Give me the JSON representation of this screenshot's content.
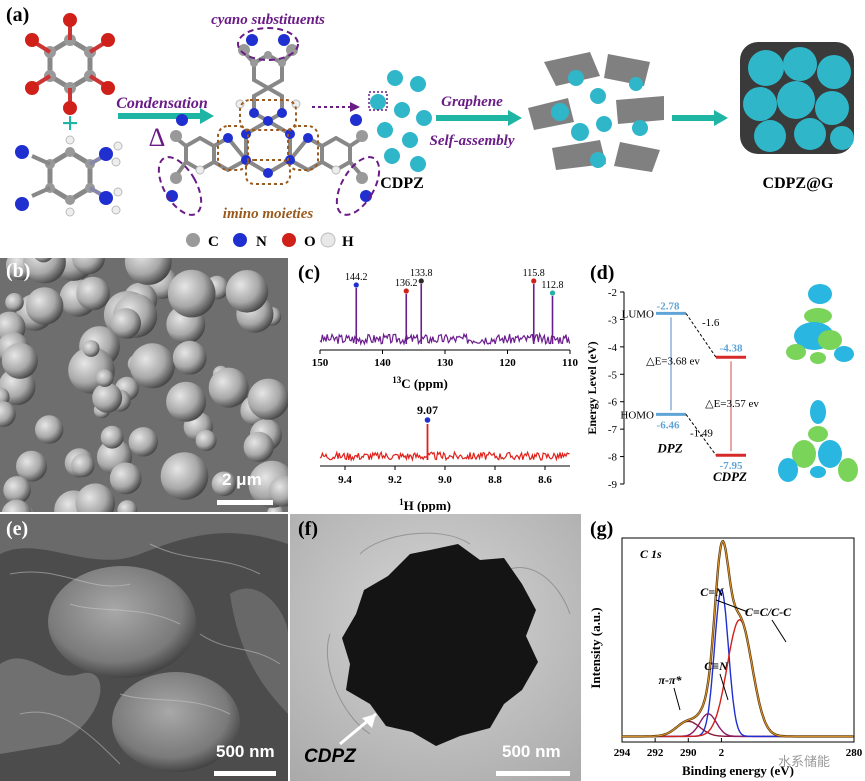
{
  "panel_labels": {
    "a": "(a)",
    "b": "(b)",
    "c": "(c)",
    "d": "(d)",
    "e": "(e)",
    "f": "(f)",
    "g": "(g)"
  },
  "panel_a": {
    "cyano_label": "cyano substituents",
    "condensation": "Condensation",
    "delta": "Δ",
    "imino_label": "imino moieties",
    "graphene": "Graphene",
    "self_assembly": "Self-assembly",
    "cdpz": "CDPZ",
    "cdpzg": "CDPZ@G",
    "plus": "+",
    "legend": [
      {
        "sym": "C",
        "color": "#9a9a9a"
      },
      {
        "sym": "N",
        "color": "#1f2fd0"
      },
      {
        "sym": "O",
        "color": "#d0201a"
      },
      {
        "sym": "H",
        "color": "#e8e8e8"
      }
    ]
  },
  "panel_b": {
    "scale": "2 μm"
  },
  "panel_e": {
    "scale": "500 nm"
  },
  "panel_f": {
    "scale": "500 nm",
    "label": "CDPZ"
  },
  "colors": {
    "cyan": "#2fb7c9",
    "purple": "#6a1b86",
    "orange": "#9a5a1e",
    "teal": "#1fb5a4",
    "c13": "#6b1d8e",
    "h1": "#e0201a",
    "lumo": "#5fa4d6",
    "red": "#d62a2a"
  },
  "chart_data": [
    {
      "type": "line",
      "id": "13C NMR",
      "xlabel": "13C (ppm)",
      "xlim": [
        150,
        110
      ],
      "xticks": [
        150,
        140,
        130,
        120,
        110
      ],
      "peaks": [
        {
          "x": 144.2,
          "label": "144.2",
          "color": "#1f2fd0"
        },
        {
          "x": 136.2,
          "label": "136.2",
          "color": "#d0201a"
        },
        {
          "x": 133.8,
          "label": "133.8",
          "color": "#2a2a2a"
        },
        {
          "x": 115.8,
          "label": "115.8",
          "color": "#d0201a"
        },
        {
          "x": 112.8,
          "label": "112.8",
          "color": "#22b0a8"
        }
      ]
    },
    {
      "type": "line",
      "id": "1H NMR",
      "xlabel": "1H (ppm)",
      "xlim": [
        9.5,
        8.5
      ],
      "xticks": [
        "9.4",
        "9.2",
        "9.0",
        "8.8",
        "8.6"
      ],
      "peaks": [
        {
          "x": 9.07,
          "label": "9.07",
          "color": "#1f2fd0"
        }
      ]
    },
    {
      "type": "bar",
      "id": "Energy levels",
      "ylabel": "Energy Level (eV)",
      "ylim": [
        -9,
        -2
      ],
      "yticks": [
        "-2",
        "-3",
        "-4",
        "-5",
        "-6",
        "-7",
        "-8",
        "-9"
      ],
      "DPZ": {
        "name": "DPZ",
        "LUMO": -2.78,
        "HOMO": -6.46,
        "gap": "△E=3.68 ev",
        "lumo_label": "-2.78",
        "homo_label": "-6.46"
      },
      "CDPZ": {
        "name": "CDPZ",
        "LUMO": -4.38,
        "HOMO": -7.95,
        "gap": "△E=3.57 ev",
        "lumo_label": "-4.38",
        "homo_label": "-7.95"
      },
      "diffs": {
        "lumo": "-1.6",
        "homo": "-1.49"
      },
      "level_labels": {
        "lumo": "LUMO",
        "homo": "HOMO"
      }
    },
    {
      "type": "line",
      "id": "XPS C 1s",
      "title": "C 1s",
      "xlabel": "Binding energy (eV)",
      "ylabel": "Intensity (a.u.)",
      "xlim": [
        294,
        280
      ],
      "xticks": [
        "294",
        "292",
        "290",
        "2",
        "280"
      ],
      "components": [
        {
          "name": "π-π*",
          "center": 290.0,
          "amp": 0.08,
          "color": "#8b1a3a"
        },
        {
          "name": "C≡N",
          "center": 288.8,
          "amp": 0.12,
          "color": "#8b1a6a"
        },
        {
          "name": "C=N",
          "center": 288.0,
          "amp": 0.78,
          "color": "#1f2fd0"
        },
        {
          "name": "C=C/C-C",
          "center": 286.9,
          "amp": 0.62,
          "color": "#d0201a"
        }
      ],
      "watermark": "水系储能"
    }
  ]
}
